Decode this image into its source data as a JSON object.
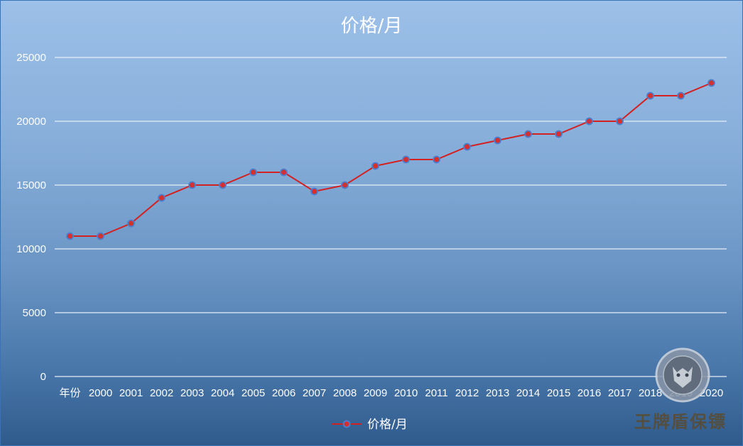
{
  "colors": {
    "line": "#d42020",
    "marker_fill": "#d43030",
    "marker_stroke": "#4a7fd0",
    "grid": "#e8eef7",
    "text": "#ffffff"
  },
  "watermark": {
    "text": "王牌盾保镖",
    "emblem_name": "tiger-badge-emblem"
  },
  "chart_data": {
    "type": "line",
    "title": "价格/月",
    "xlabel": "",
    "ylabel": "",
    "categories": [
      "年份",
      "2000",
      "2001",
      "2002",
      "2003",
      "2004",
      "2005",
      "2006",
      "2007",
      "2008",
      "2009",
      "2010",
      "2011",
      "2012",
      "2013",
      "2014",
      "2015",
      "2016",
      "2017",
      "2018",
      "2019",
      "2020"
    ],
    "series": [
      {
        "name": "价格/月",
        "values": [
          11000,
          11000,
          12000,
          14000,
          15000,
          15000,
          16000,
          16000,
          14500,
          15000,
          16500,
          17000,
          17000,
          18000,
          18500,
          19000,
          19000,
          20000,
          20000,
          22000,
          22000,
          23000
        ]
      }
    ],
    "ylim": [
      0,
      25000
    ],
    "yticks": [
      0,
      5000,
      10000,
      15000,
      20000,
      25000
    ],
    "grid": true,
    "legend_position": "bottom-center"
  }
}
